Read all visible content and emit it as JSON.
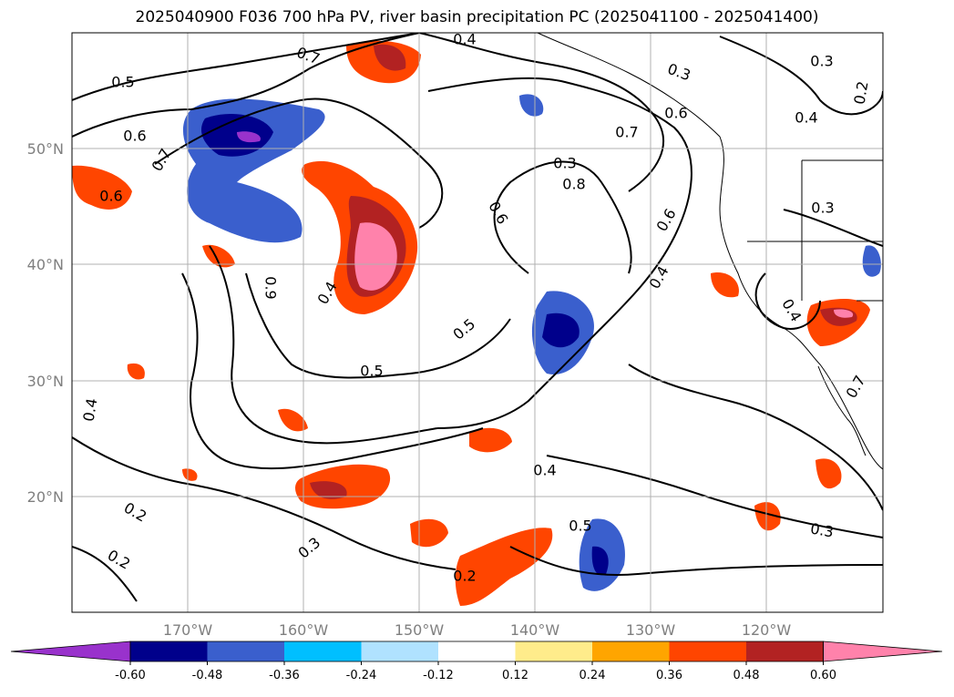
{
  "title": "2025040900 F036 700 hPa PV, river basin precipitation PC (2025041100 - 2025041400)",
  "map": {
    "lat_labels": [
      "50°N",
      "40°N",
      "30°N",
      "20°N"
    ],
    "lon_labels": [
      "170°W",
      "160°W",
      "150°W",
      "140°W",
      "130°W",
      "120°W"
    ],
    "contour_labels": [
      "0.4",
      "0.7",
      "0.5",
      "0.6",
      "0.7",
      "0.6",
      "0.4",
      "0.9",
      "0.5",
      "0.5",
      "0.4",
      "0.2",
      "0.2",
      "0.3",
      "0.2",
      "0.8",
      "0.6",
      "0.6",
      "0.4",
      "0.7",
      "0.3",
      "0.3",
      "0.4",
      "0.2",
      "0.3",
      "0.4",
      "0.3",
      "0.5",
      "0.4",
      "0.3",
      "0.6",
      "0.7"
    ],
    "lat_range": [
      10,
      60
    ],
    "lon_range": [
      -180,
      -110
    ],
    "grid": true,
    "projection": "PlateCarree"
  },
  "colorbar": {
    "colors": [
      "#9932cc",
      "#00008b",
      "#3a5fcd",
      "#00bfff",
      "#b0e2ff",
      "#ffffff",
      "#ffec8b",
      "#ffa500",
      "#ff4500",
      "#b22222",
      "#ff82ab"
    ],
    "ticks": [
      "-0.60",
      "-0.48",
      "-0.36",
      "-0.24",
      "-0.12",
      "0.12",
      "0.24",
      "0.36",
      "0.48",
      "0.60"
    ],
    "extend": "both"
  }
}
